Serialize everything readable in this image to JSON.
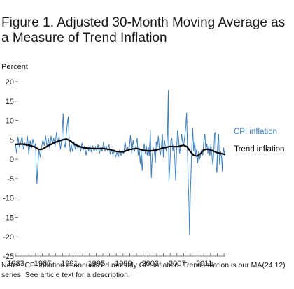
{
  "figure": {
    "title": "Figure 1. Adjusted 30-Month Moving Average as a Measure of Trend Inflation",
    "notes": "Notes: CPI inflation is annualized monthly CPI inflation. Trend inflation is our MA(24,12) series. See article text for a description."
  },
  "chart_data": {
    "type": "line",
    "ylabel": "Percent",
    "xlim": [
      1983.0,
      2014.2
    ],
    "ylim": [
      -25,
      20
    ],
    "y_ticks": [
      20,
      15,
      10,
      5,
      0,
      -5,
      -10,
      -15,
      -20,
      -25
    ],
    "x_ticks": [
      1983,
      1987,
      1991,
      1995,
      1999,
      2003,
      2007,
      2011
    ],
    "grid": false,
    "colors": {
      "cpi": "#3b7fbf",
      "trend": "#000000",
      "cpi_label": "#3b7fbf",
      "trend_label": "#000000"
    },
    "series": [
      {
        "name": "CPI inflation",
        "values": [
          [
            1983.0,
            4.0
          ],
          [
            1983.2,
            1.5
          ],
          [
            1983.4,
            5.8
          ],
          [
            1983.6,
            3.0
          ],
          [
            1983.8,
            4.5
          ],
          [
            1984.0,
            5.9
          ],
          [
            1984.2,
            2.5
          ],
          [
            1984.4,
            4.2
          ],
          [
            1984.6,
            3.5
          ],
          [
            1984.8,
            6.0
          ],
          [
            1985.0,
            1.2
          ],
          [
            1985.2,
            4.8
          ],
          [
            1985.4,
            2.8
          ],
          [
            1985.6,
            5.2
          ],
          [
            1985.8,
            3.0
          ],
          [
            1986.0,
            4.0
          ],
          [
            1986.1,
            -2.0
          ],
          [
            1986.2,
            -6.4
          ],
          [
            1986.35,
            -1.5
          ],
          [
            1986.5,
            2.5
          ],
          [
            1986.7,
            0.5
          ],
          [
            1986.9,
            3.2
          ],
          [
            1987.1,
            5.0
          ],
          [
            1987.3,
            3.5
          ],
          [
            1987.5,
            6.0
          ],
          [
            1987.7,
            3.0
          ],
          [
            1987.9,
            5.5
          ],
          [
            1988.1,
            2.8
          ],
          [
            1988.3,
            6.0
          ],
          [
            1988.5,
            3.8
          ],
          [
            1988.7,
            5.5
          ],
          [
            1988.9,
            3.2
          ],
          [
            1989.1,
            7.0
          ],
          [
            1989.3,
            4.2
          ],
          [
            1989.5,
            6.0
          ],
          [
            1989.7,
            2.5
          ],
          [
            1989.9,
            5.0
          ],
          [
            1990.1,
            11.8
          ],
          [
            1990.25,
            4.0
          ],
          [
            1990.4,
            3.0
          ],
          [
            1990.55,
            6.0
          ],
          [
            1990.7,
            8.8
          ],
          [
            1990.85,
            11.0
          ],
          [
            1991.0,
            5.0
          ],
          [
            1991.15,
            1.8
          ],
          [
            1991.3,
            3.8
          ],
          [
            1991.5,
            2.0
          ],
          [
            1991.7,
            4.5
          ],
          [
            1991.9,
            2.5
          ],
          [
            1992.1,
            4.0
          ],
          [
            1992.3,
            2.8
          ],
          [
            1992.5,
            3.5
          ],
          [
            1992.7,
            2.0
          ],
          [
            1992.9,
            4.2
          ],
          [
            1993.1,
            2.5
          ],
          [
            1993.3,
            3.5
          ],
          [
            1993.5,
            1.0
          ],
          [
            1993.7,
            3.0
          ],
          [
            1993.9,
            2.2
          ],
          [
            1994.1,
            3.5
          ],
          [
            1994.3,
            1.8
          ],
          [
            1994.5,
            3.5
          ],
          [
            1994.7,
            2.0
          ],
          [
            1994.9,
            3.2
          ],
          [
            1995.1,
            2.2
          ],
          [
            1995.3,
            3.8
          ],
          [
            1995.5,
            1.5
          ],
          [
            1995.7,
            3.2
          ],
          [
            1995.9,
            2.0
          ],
          [
            1996.1,
            4.5
          ],
          [
            1996.3,
            2.0
          ],
          [
            1996.5,
            3.5
          ],
          [
            1996.7,
            2.2
          ],
          [
            1996.9,
            3.8
          ],
          [
            1997.1,
            1.2
          ],
          [
            1997.3,
            2.5
          ],
          [
            1997.5,
            1.0
          ],
          [
            1997.7,
            2.5
          ],
          [
            1997.9,
            0.5
          ],
          [
            1998.1,
            1.8
          ],
          [
            1998.3,
            0.5
          ],
          [
            1998.5,
            2.5
          ],
          [
            1998.7,
            1.0
          ],
          [
            1998.9,
            2.2
          ],
          [
            1999.1,
            1.5
          ],
          [
            1999.3,
            4.5
          ],
          [
            1999.5,
            2.0
          ],
          [
            1999.7,
            3.0
          ],
          [
            1999.9,
            2.2
          ],
          [
            2000.1,
            6.2
          ],
          [
            2000.3,
            1.5
          ],
          [
            2000.5,
            5.0
          ],
          [
            2000.7,
            2.0
          ],
          [
            2000.9,
            3.2
          ],
          [
            2001.1,
            5.5
          ],
          [
            2001.25,
            1.0
          ],
          [
            2001.4,
            3.0
          ],
          [
            2001.55,
            -1.2
          ],
          [
            2001.7,
            2.0
          ],
          [
            2001.85,
            -3.0
          ],
          [
            2002.0,
            2.0
          ],
          [
            2002.15,
            4.0
          ],
          [
            2002.3,
            1.5
          ],
          [
            2002.45,
            3.5
          ],
          [
            2002.6,
            1.0
          ],
          [
            2002.75,
            3.2
          ],
          [
            2002.9,
            0.8
          ],
          [
            2003.05,
            7.5
          ],
          [
            2003.2,
            -4.8
          ],
          [
            2003.35,
            1.0
          ],
          [
            2003.5,
            3.0
          ],
          [
            2003.65,
            2.0
          ],
          [
            2003.8,
            -1.0
          ],
          [
            2003.95,
            4.5
          ],
          [
            2004.1,
            3.2
          ],
          [
            2004.25,
            6.0
          ],
          [
            2004.4,
            2.5
          ],
          [
            2004.55,
            1.0
          ],
          [
            2004.7,
            3.5
          ],
          [
            2004.85,
            6.5
          ],
          [
            2005.0,
            0.5
          ],
          [
            2005.15,
            5.0
          ],
          [
            2005.3,
            3.0
          ],
          [
            2005.45,
            2.0
          ],
          [
            2005.6,
            6.0
          ],
          [
            2005.72,
            17.8
          ],
          [
            2005.82,
            -5.8
          ],
          [
            2005.95,
            -2.0
          ],
          [
            2006.1,
            4.8
          ],
          [
            2006.25,
            5.5
          ],
          [
            2006.4,
            2.0
          ],
          [
            2006.55,
            4.0
          ],
          [
            2006.7,
            -0.5
          ],
          [
            2006.82,
            -5.5
          ],
          [
            2006.95,
            2.0
          ],
          [
            2007.1,
            7.5
          ],
          [
            2007.25,
            5.5
          ],
          [
            2007.4,
            1.5
          ],
          [
            2007.55,
            3.5
          ],
          [
            2007.7,
            6.5
          ],
          [
            2007.85,
            4.5
          ],
          [
            2008.0,
            3.5
          ],
          [
            2008.15,
            5.5
          ],
          [
            2008.3,
            8.0
          ],
          [
            2008.45,
            12.0
          ],
          [
            2008.55,
            4.0
          ],
          [
            2008.68,
            -5.5
          ],
          [
            2008.8,
            -12.0
          ],
          [
            2008.88,
            -19.5
          ],
          [
            2009.0,
            -9.0
          ],
          [
            2009.1,
            -3.5
          ],
          [
            2009.22,
            3.0
          ],
          [
            2009.35,
            8.0
          ],
          [
            2009.5,
            2.0
          ],
          [
            2009.65,
            4.5
          ],
          [
            2009.8,
            1.0
          ],
          [
            2009.95,
            2.5
          ],
          [
            2010.1,
            -1.0
          ],
          [
            2010.25,
            2.0
          ],
          [
            2010.4,
            0.0
          ],
          [
            2010.55,
            1.5
          ],
          [
            2010.7,
            2.5
          ],
          [
            2010.85,
            1.0
          ],
          [
            2011.0,
            4.5
          ],
          [
            2011.15,
            6.5
          ],
          [
            2011.3,
            2.5
          ],
          [
            2011.45,
            4.0
          ],
          [
            2011.6,
            1.5
          ],
          [
            2011.75,
            3.5
          ],
          [
            2011.9,
            0.8
          ],
          [
            2012.05,
            4.0
          ],
          [
            2012.2,
            1.0
          ],
          [
            2012.35,
            -1.5
          ],
          [
            2012.5,
            2.5
          ],
          [
            2012.6,
            6.5
          ],
          [
            2012.72,
            7.0
          ],
          [
            2012.85,
            -2.0
          ],
          [
            2012.95,
            -3.5
          ],
          [
            2013.05,
            3.5
          ],
          [
            2013.2,
            6.5
          ],
          [
            2013.35,
            -1.5
          ],
          [
            2013.5,
            2.0
          ],
          [
            2013.65,
            0.5
          ],
          [
            2013.75,
            -3.2
          ],
          [
            2013.85,
            1.5
          ],
          [
            2013.95,
            3.0
          ],
          [
            2014.05,
            1.0
          ],
          [
            2014.15,
            2.0
          ]
        ]
      },
      {
        "name": "Trend inflation",
        "values": [
          [
            1983.0,
            3.8
          ],
          [
            1984.0,
            3.9
          ],
          [
            1985.0,
            3.6
          ],
          [
            1985.8,
            3.2
          ],
          [
            1986.5,
            2.5
          ],
          [
            1987.0,
            2.6
          ],
          [
            1988.0,
            3.6
          ],
          [
            1989.0,
            4.4
          ],
          [
            1990.0,
            5.0
          ],
          [
            1990.6,
            5.2
          ],
          [
            1991.2,
            4.7
          ],
          [
            1992.0,
            3.6
          ],
          [
            1993.0,
            3.0
          ],
          [
            1994.0,
            2.8
          ],
          [
            1995.0,
            2.7
          ],
          [
            1996.0,
            2.8
          ],
          [
            1997.0,
            2.5
          ],
          [
            1998.0,
            2.0
          ],
          [
            1999.0,
            1.9
          ],
          [
            2000.0,
            2.5
          ],
          [
            2001.0,
            2.8
          ],
          [
            2002.0,
            2.3
          ],
          [
            2003.0,
            2.1
          ],
          [
            2004.0,
            2.4
          ],
          [
            2005.0,
            2.9
          ],
          [
            2006.0,
            3.3
          ],
          [
            2007.0,
            3.2
          ],
          [
            2008.0,
            3.6
          ],
          [
            2008.5,
            3.2
          ],
          [
            2009.0,
            2.0
          ],
          [
            2009.5,
            1.0
          ],
          [
            2010.0,
            0.8
          ],
          [
            2010.5,
            1.4
          ],
          [
            2011.0,
            2.4
          ],
          [
            2011.5,
            2.6
          ],
          [
            2012.0,
            2.4
          ],
          [
            2013.0,
            1.7
          ],
          [
            2014.0,
            1.3
          ],
          [
            2014.2,
            1.2
          ]
        ]
      }
    ]
  }
}
